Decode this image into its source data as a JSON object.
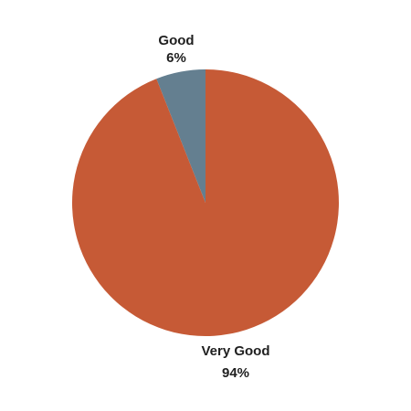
{
  "chart_data": {
    "type": "pie",
    "title": "",
    "start": "top",
    "direction": "counterclockwise",
    "slices": [
      {
        "label": "Good",
        "value": 6,
        "value_label": "6%",
        "color": "#647f90"
      },
      {
        "label": "Very Good",
        "value": 94,
        "value_label": "94%",
        "color": "#c65a36"
      }
    ]
  }
}
